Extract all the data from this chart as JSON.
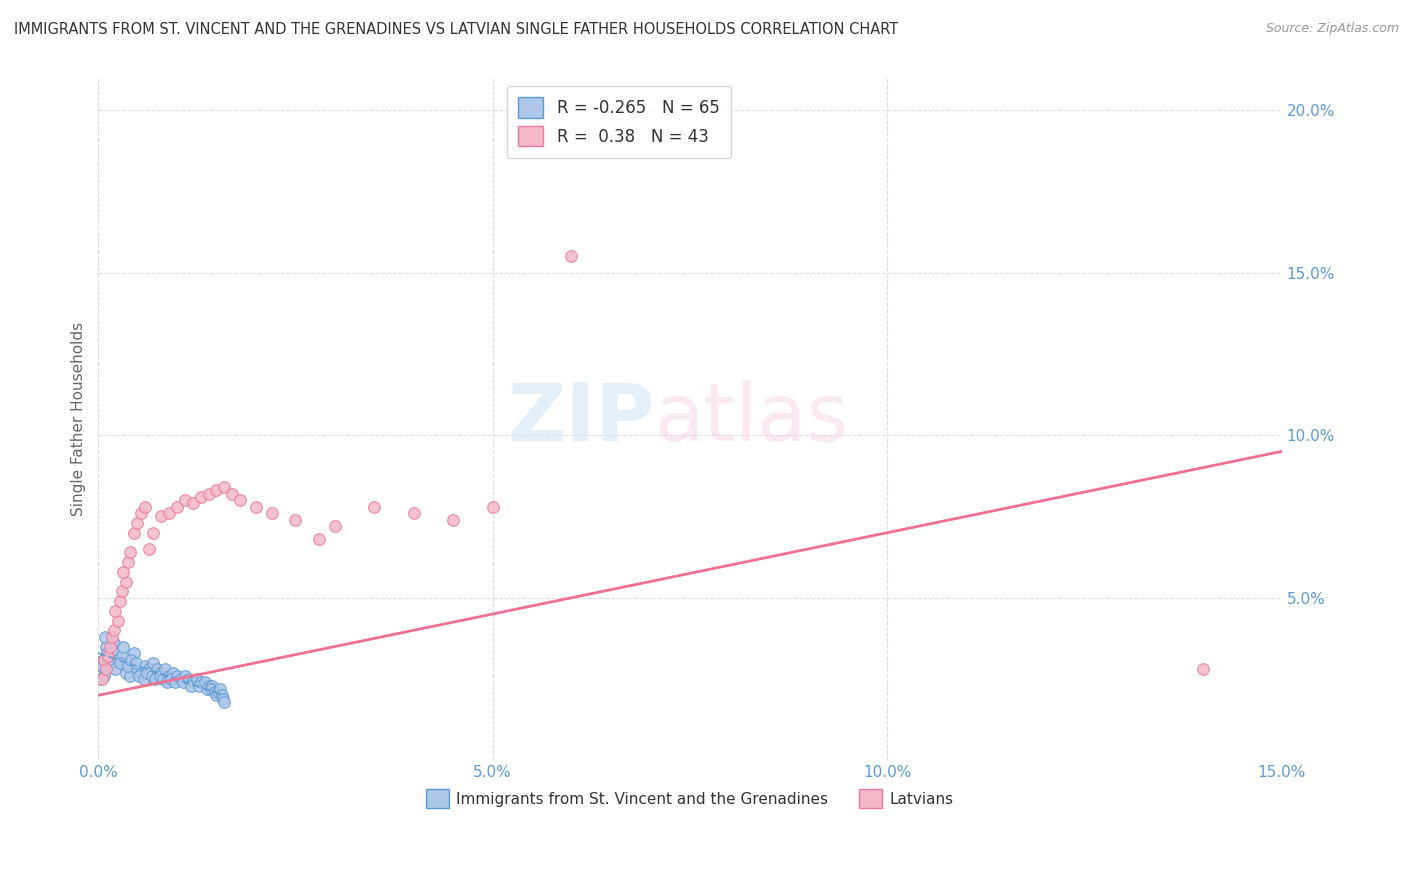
{
  "title": "IMMIGRANTS FROM ST. VINCENT AND THE GRENADINES VS LATVIAN SINGLE FATHER HOUSEHOLDS CORRELATION CHART",
  "source": "Source: ZipAtlas.com",
  "ylabel": "Single Father Households",
  "xlim": [
    0.0,
    0.15
  ],
  "ylim": [
    0.0,
    0.21
  ],
  "xticks": [
    0.0,
    0.05,
    0.1,
    0.15
  ],
  "yticks": [
    0.0,
    0.05,
    0.1,
    0.15,
    0.2
  ],
  "xticklabels": [
    "0.0%",
    "5.0%",
    "10.0%",
    "15.0%"
  ],
  "yticklabels": [
    "",
    "5.0%",
    "10.0%",
    "15.0%",
    "20.0%"
  ],
  "blue_R": -0.265,
  "blue_N": 65,
  "pink_R": 0.38,
  "pink_N": 43,
  "blue_fill": "#aec6e8",
  "blue_edge": "#5b9bd5",
  "pink_fill": "#f4b8c8",
  "pink_edge": "#e8799a",
  "blue_trend_color": "#5b9bd5",
  "pink_trend_color": "#f07090",
  "watermark_zip": "ZIP",
  "watermark_atlas": "atlas",
  "legend_label_blue": "Immigrants from St. Vincent and the Grenadines",
  "legend_label_pink": "Latvians",
  "blue_x": [
    0.0004,
    0.0006,
    0.0008,
    0.001,
    0.0012,
    0.0005,
    0.0007,
    0.0009,
    0.0011,
    0.0015,
    0.002,
    0.0025,
    0.0018,
    0.0022,
    0.003,
    0.0035,
    0.0028,
    0.0032,
    0.004,
    0.0038,
    0.0045,
    0.0042,
    0.005,
    0.0048,
    0.0055,
    0.0052,
    0.006,
    0.0058,
    0.0065,
    0.0062,
    0.007,
    0.0068,
    0.0075,
    0.0072,
    0.008,
    0.0078,
    0.0085,
    0.0082,
    0.009,
    0.0088,
    0.0095,
    0.0092,
    0.01,
    0.0098,
    0.0105,
    0.011,
    0.0108,
    0.0115,
    0.012,
    0.0118,
    0.0125,
    0.013,
    0.0128,
    0.0135,
    0.014,
    0.0138,
    0.0145,
    0.0143,
    0.0148,
    0.015,
    0.0152,
    0.0155,
    0.0157,
    0.0158,
    0.016
  ],
  "blue_y": [
    0.025,
    0.031,
    0.028,
    0.035,
    0.032,
    0.029,
    0.026,
    0.038,
    0.033,
    0.03,
    0.036,
    0.031,
    0.034,
    0.028,
    0.032,
    0.027,
    0.03,
    0.035,
    0.026,
    0.029,
    0.033,
    0.031,
    0.028,
    0.03,
    0.027,
    0.026,
    0.029,
    0.025,
    0.028,
    0.027,
    0.03,
    0.026,
    0.028,
    0.025,
    0.027,
    0.026,
    0.028,
    0.025,
    0.026,
    0.024,
    0.027,
    0.025,
    0.026,
    0.024,
    0.025,
    0.026,
    0.024,
    0.025,
    0.024,
    0.023,
    0.025,
    0.024,
    0.023,
    0.024,
    0.023,
    0.022,
    0.023,
    0.022,
    0.021,
    0.02,
    0.021,
    0.022,
    0.02,
    0.019,
    0.018
  ],
  "pink_x": [
    0.0005,
    0.0008,
    0.001,
    0.0012,
    0.0015,
    0.0018,
    0.002,
    0.0025,
    0.0022,
    0.0028,
    0.003,
    0.0035,
    0.0032,
    0.0038,
    0.004,
    0.0045,
    0.005,
    0.0055,
    0.006,
    0.0065,
    0.007,
    0.008,
    0.009,
    0.01,
    0.011,
    0.012,
    0.013,
    0.014,
    0.015,
    0.016,
    0.017,
    0.018,
    0.02,
    0.022,
    0.025,
    0.028,
    0.03,
    0.035,
    0.04,
    0.045,
    0.05,
    0.14,
    0.06
  ],
  "pink_y": [
    0.025,
    0.031,
    0.028,
    0.032,
    0.035,
    0.038,
    0.04,
    0.043,
    0.046,
    0.049,
    0.052,
    0.055,
    0.058,
    0.061,
    0.064,
    0.07,
    0.073,
    0.076,
    0.078,
    0.065,
    0.07,
    0.075,
    0.076,
    0.078,
    0.08,
    0.079,
    0.081,
    0.082,
    0.083,
    0.084,
    0.082,
    0.08,
    0.078,
    0.076,
    0.074,
    0.068,
    0.072,
    0.078,
    0.076,
    0.074,
    0.078,
    0.028,
    0.155
  ],
  "blue_trend_x": [
    0.0,
    0.016
  ],
  "blue_trend_y": [
    0.033,
    0.02
  ],
  "pink_trend_x": [
    0.0,
    0.15
  ],
  "pink_trend_y": [
    0.02,
    0.095
  ],
  "background_color": "#ffffff",
  "grid_color": "#dddddd",
  "tick_color": "#5b9bd5"
}
